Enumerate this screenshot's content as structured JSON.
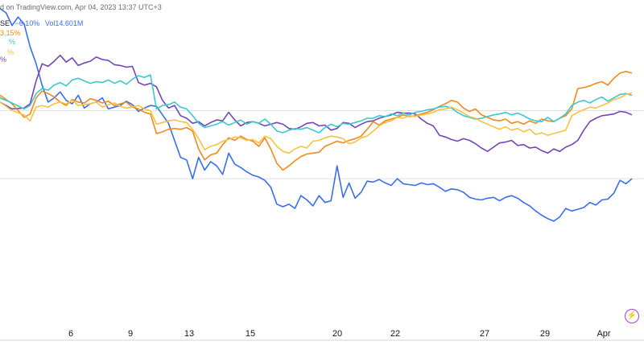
{
  "header": {
    "published_text": "d on TradingView.com, Apr 04, 2023 13:37 UTC+3",
    "symbol_fragment": "SE",
    "change": "−6.10%",
    "volume": "Vol14.601M",
    "orange_label": "3.15%",
    "teal_label": "%",
    "yellow_label": "%",
    "purple_label": "%"
  },
  "colors": {
    "blue": "#3a6ef0",
    "orange": "#f2891c",
    "teal": "#3cc8cc",
    "yellow": "#f6c343",
    "purple": "#7346b8",
    "grid": "#dde1ea",
    "text": "#131722",
    "muted": "#6a6d78"
  },
  "icons": {
    "replay_button": "lightning-icon"
  },
  "chart_data": {
    "type": "line",
    "x_ticks": [
      "6",
      "9",
      "13",
      "15",
      "20",
      "22",
      "27",
      "29",
      "Apr"
    ],
    "x_range": [
      0,
      107
    ],
    "y_range": [
      -27,
      13
    ],
    "reference_lines": [
      0,
      -8
    ],
    "grid": false,
    "series": [
      {
        "color": "blue",
        "x": [
          0,
          1,
          2,
          3,
          4,
          5,
          6,
          7,
          8,
          9,
          10,
          11,
          12,
          13,
          14,
          15,
          16,
          17,
          18,
          19,
          20,
          21,
          22,
          23,
          24,
          25,
          26,
          27,
          28,
          29,
          30,
          31,
          32,
          33,
          34,
          35,
          36,
          37,
          38,
          39,
          40,
          41,
          42,
          43,
          44,
          45,
          46,
          47,
          48,
          49,
          50,
          51,
          52,
          53,
          54,
          55,
          56,
          57,
          58,
          59,
          60,
          61,
          62,
          63,
          64,
          65,
          66,
          67,
          68,
          69,
          70,
          71,
          72,
          73,
          74,
          75,
          76,
          77,
          78,
          79,
          80,
          81,
          82,
          83,
          84,
          85,
          86,
          87,
          88,
          89,
          90,
          91,
          92,
          93,
          94,
          95,
          96,
          97,
          98,
          99,
          100,
          101,
          102,
          103,
          104,
          105
        ],
        "y": [
          12,
          11.5,
          10,
          11,
          10.2,
          7.5,
          5.5,
          3,
          1,
          1.5,
          2.2,
          1.2,
          0.8,
          1.8,
          0.3,
          0.8,
          1,
          1.5,
          0.2,
          0.4,
          0.6,
          1.1,
          0.7,
          -0.1,
          0.3,
          0.6,
          0.5,
          -0.5,
          -1.5,
          -3.5,
          -5.5,
          -5.8,
          -8,
          -5.5,
          -7,
          -6,
          -6.5,
          -7.5,
          -5,
          -6.3,
          -6.7,
          -7.2,
          -7.6,
          -7.8,
          -8.2,
          -9,
          -11,
          -11.3,
          -11,
          -11.5,
          -10,
          -10.5,
          -11.2,
          -10,
          -10.8,
          -10.6,
          -6.5,
          -10.2,
          -8.5,
          -10.3,
          -9.6,
          -8.3,
          -8.4,
          -8.1,
          -8.5,
          -8.8,
          -8,
          -8.6,
          -8.7,
          -8.8,
          -8.5,
          -8.7,
          -8.6,
          -9,
          -9.5,
          -9.2,
          -9.3,
          -9.6,
          -10.2,
          -10.4,
          -10.5,
          -10.3,
          -10.2,
          -10.6,
          -10.2,
          -10,
          -10.3,
          -10.8,
          -11.2,
          -11.8,
          -12.3,
          -12.7,
          -13,
          -12.5,
          -11.5,
          -11.8,
          -11.6,
          -11.4,
          -10.8,
          -11.1,
          -10.5,
          -10.4,
          -9.7,
          -8.2,
          -8.6,
          -8
        ]
      },
      {
        "color": "purple",
        "x": [
          0,
          2,
          4,
          5,
          6,
          7,
          8,
          9,
          10,
          11,
          12,
          13,
          14,
          15,
          16,
          17,
          18,
          19,
          20,
          21,
          22,
          23,
          24,
          25,
          26,
          27,
          28,
          29,
          30,
          31,
          32,
          33,
          34,
          35,
          36,
          37,
          38,
          39,
          40,
          41,
          42,
          43,
          44,
          45,
          46,
          47,
          48,
          49,
          50,
          51,
          52,
          53,
          54,
          55,
          56,
          57,
          58,
          59,
          60,
          61,
          62,
          63,
          64,
          65,
          66,
          67,
          68,
          69,
          70,
          71,
          72,
          73,
          74,
          75,
          76,
          77,
          78,
          79,
          80,
          81,
          82,
          83,
          84,
          85,
          86,
          87,
          88,
          89,
          90,
          91,
          92,
          93,
          94,
          95,
          96,
          97,
          98,
          99,
          100,
          101,
          102,
          103,
          104,
          105
        ],
        "y": [
          1,
          0.2,
          0.3,
          0.8,
          3.5,
          5.5,
          5.2,
          5.8,
          6.5,
          5.7,
          6.2,
          5.3,
          5.6,
          5.8,
          6.3,
          6.0,
          5.9,
          5.4,
          5.3,
          5.1,
          5.2,
          3.3,
          3.0,
          3.2,
          2.8,
          1.2,
          0.3,
          0.6,
          -0.6,
          -0.9,
          -1.5,
          -1.3,
          -1.8,
          -1.4,
          -1.1,
          -1.2,
          -0.2,
          -1.1,
          -1.8,
          -1.4,
          -1.3,
          -1.5,
          -1.8,
          -1.6,
          -1.4,
          -1.6,
          -2.1,
          -2.2,
          -1.9,
          -1.5,
          -1.4,
          -1.8,
          -1.7,
          -2.3,
          -2.1,
          -1.4,
          -1.5,
          -2.0,
          -1.6,
          -1.3,
          -1.2,
          -0.9,
          -0.7,
          -0.5,
          -0.2,
          -0.3,
          -0.3,
          -0.4,
          -1.0,
          -1.5,
          -1.8,
          -2.9,
          -3.1,
          -3.4,
          -3.6,
          -3.3,
          -3.5,
          -3.9,
          -4.4,
          -4.8,
          -4.3,
          -3.8,
          -3.7,
          -3.5,
          -4.1,
          -4.0,
          -4.4,
          -4.3,
          -4.7,
          -5.0,
          -4.5,
          -4.8,
          -4.3,
          -4.0,
          -3.5,
          -2.3,
          -1.3,
          -0.9,
          -0.6,
          -0.5,
          -0.4,
          -0.1,
          -0.2,
          -0.5
        ]
      },
      {
        "color": "orange",
        "x": [
          0,
          2,
          4,
          5,
          6,
          7,
          8,
          9,
          10,
          11,
          12,
          13,
          14,
          15,
          16,
          17,
          18,
          19,
          20,
          21,
          22,
          23,
          24,
          25,
          26,
          27,
          28,
          29,
          30,
          31,
          32,
          33,
          34,
          35,
          36,
          37,
          38,
          39,
          40,
          41,
          42,
          43,
          44,
          45,
          46,
          47,
          48,
          49,
          50,
          51,
          52,
          53,
          54,
          55,
          56,
          57,
          58,
          59,
          60,
          61,
          62,
          63,
          64,
          65,
          66,
          67,
          68,
          69,
          70,
          71,
          72,
          73,
          74,
          75,
          76,
          77,
          78,
          79,
          80,
          81,
          82,
          83,
          84,
          85,
          86,
          87,
          88,
          89,
          90,
          91,
          92,
          93,
          94,
          95,
          96,
          97,
          98,
          99,
          100,
          101,
          102,
          103,
          104,
          105
        ],
        "y": [
          1.8,
          0.8,
          -0.8,
          -0.4,
          1.5,
          2.3,
          2.0,
          1.6,
          1.0,
          0.6,
          1.3,
          1.0,
          0.9,
          1.4,
          1.2,
          0.9,
          1.1,
          0.6,
          0.8,
          1.0,
          0.4,
          0.2,
          -0.2,
          -0.4,
          -2.7,
          -2.5,
          -2.2,
          -2.1,
          -2.2,
          -2.0,
          -2.4,
          -4.5,
          -5.8,
          -5.2,
          -5.0,
          -4.0,
          -3.2,
          -3.5,
          -3.0,
          -3.4,
          -3.6,
          -4.2,
          -3.2,
          -4.5,
          -6.2,
          -7.0,
          -6.5,
          -5.9,
          -5.4,
          -5.1,
          -5.0,
          -4.9,
          -4.2,
          -3.9,
          -3.6,
          -3.8,
          -3.5,
          -3.3,
          -3.0,
          -2.2,
          -1.3,
          -1.7,
          -1.2,
          -1.0,
          -0.8,
          -0.5,
          -0.7,
          -0.6,
          -0.4,
          -0.2,
          0.1,
          0.5,
          0.8,
          1.2,
          1.0,
          0.3,
          -0.1,
          0.2,
          -0.5,
          -0.8,
          -1.1,
          -1.2,
          -1.0,
          -1.5,
          -1.3,
          -1.6,
          -1.2,
          -1.5,
          -1.0,
          -1.2,
          -1.3,
          -0.9,
          -0.6,
          0.2,
          2.6,
          2.7,
          2.9,
          3.2,
          3.4,
          3.0,
          3.8,
          4.4,
          4.6,
          4.4
        ]
      },
      {
        "color": "teal",
        "x": [
          0,
          2,
          4,
          5,
          6,
          7,
          8,
          9,
          10,
          11,
          12,
          13,
          14,
          15,
          16,
          17,
          18,
          19,
          20,
          21,
          22,
          23,
          24,
          25,
          26,
          27,
          28,
          29,
          30,
          31,
          32,
          33,
          34,
          35,
          36,
          37,
          38,
          39,
          40,
          41,
          42,
          43,
          44,
          45,
          46,
          47,
          48,
          49,
          50,
          51,
          52,
          53,
          54,
          55,
          56,
          57,
          58,
          59,
          60,
          61,
          62,
          63,
          64,
          65,
          66,
          67,
          68,
          69,
          70,
          71,
          72,
          73,
          74,
          75,
          76,
          77,
          78,
          79,
          80,
          81,
          82,
          83,
          84,
          85,
          86,
          87,
          88,
          89,
          90,
          91,
          92,
          93,
          94,
          95,
          96,
          97,
          98,
          99,
          100,
          101,
          102,
          103,
          104,
          105
        ],
        "y": [
          1.5,
          0.9,
          0.2,
          0.6,
          2.0,
          2.6,
          2.4,
          3.0,
          3.3,
          2.9,
          3.6,
          3.8,
          3.5,
          3.2,
          3.4,
          3.3,
          3.6,
          3.2,
          3.5,
          3.1,
          3.7,
          4.1,
          3.9,
          4.2,
          0.2,
          0.6,
          0.7,
          1.0,
          0.4,
          0.2,
          -0.6,
          -1.5,
          -2.0,
          -1.8,
          -1.6,
          -1.3,
          -1.7,
          -1.4,
          -1.1,
          -1.6,
          -1.3,
          -1.5,
          -1.0,
          -1.6,
          -2.4,
          -2.6,
          -2.3,
          -2.1,
          -2.2,
          -2.0,
          -2.3,
          -2.6,
          -2.0,
          -1.6,
          -1.9,
          -1.5,
          -1.6,
          -1.4,
          -1.2,
          -0.9,
          -0.9,
          -0.6,
          -0.7,
          -0.4,
          -0.6,
          -0.3,
          -0.5,
          -0.2,
          -0.1,
          0.1,
          0.2,
          0.4,
          0.5,
          0.3,
          -0.2,
          -0.6,
          -0.8,
          -1.0,
          -0.9,
          -0.7,
          -0.5,
          -0.4,
          -0.2,
          -0.5,
          -0.3,
          -0.6,
          -1.0,
          -1.2,
          -1.3,
          -0.8,
          -1.3,
          -0.9,
          -0.4,
          0.6,
          1.0,
          1.2,
          0.9,
          1.3,
          1.6,
          1.1,
          1.5,
          1.9,
          2.0,
          1.8
        ]
      },
      {
        "color": "yellow",
        "x": [
          0,
          2,
          4,
          5,
          6,
          7,
          8,
          9,
          10,
          11,
          12,
          13,
          14,
          15,
          16,
          17,
          18,
          19,
          20,
          21,
          22,
          23,
          24,
          25,
          26,
          27,
          28,
          29,
          30,
          31,
          32,
          33,
          34,
          35,
          36,
          37,
          38,
          39,
          40,
          41,
          42,
          43,
          44,
          45,
          46,
          47,
          48,
          49,
          50,
          51,
          52,
          53,
          54,
          55,
          56,
          57,
          58,
          59,
          60,
          61,
          62,
          63,
          64,
          65,
          66,
          67,
          68,
          69,
          70,
          71,
          72,
          73,
          74,
          75,
          76,
          77,
          78,
          79,
          80,
          81,
          82,
          83,
          84,
          85,
          86,
          87,
          88,
          89,
          90,
          91,
          92,
          93,
          94,
          95,
          96,
          97,
          98,
          99,
          100,
          101,
          102,
          103,
          104,
          105
        ],
        "y": [
          1.0,
          0.0,
          -0.5,
          -1.2,
          0.4,
          0.6,
          0.4,
          0.8,
          1.0,
          0.8,
          1.2,
          0.6,
          0.7,
          0.8,
          1.0,
          0.4,
          0.7,
          0.9,
          0.5,
          0.3,
          0.4,
          0.6,
          0.2,
          0.0,
          -1.6,
          -1.4,
          -1.2,
          -1.1,
          -1.3,
          -1.4,
          -2.2,
          -3.3,
          -4.6,
          -4.2,
          -4.0,
          -3.6,
          -3.4,
          -3.1,
          -3.2,
          -3.5,
          -3.4,
          -3.8,
          -3.0,
          -3.3,
          -4.2,
          -4.8,
          -5.0,
          -4.5,
          -4.2,
          -4.4,
          -3.6,
          -3.5,
          -3.2,
          -3.0,
          -3.1,
          -3.3,
          -3.9,
          -3.7,
          -3.2,
          -3.0,
          -2.4,
          -1.8,
          -1.4,
          -1.2,
          -0.8,
          -0.9,
          -0.6,
          -0.7,
          -0.5,
          -0.4,
          -0.2,
          0.1,
          0.2,
          0.4,
          0.1,
          -0.3,
          -0.7,
          -0.9,
          -1.3,
          -1.6,
          -1.9,
          -2.2,
          -1.9,
          -2.3,
          -2.1,
          -2.5,
          -2.2,
          -2.8,
          -2.6,
          -2.9,
          -2.7,
          -2.5,
          -2.3,
          -0.6,
          -0.2,
          0.1,
          0.4,
          0.3,
          0.6,
          0.9,
          1.3,
          1.5,
          1.9,
          2.1
        ]
      }
    ]
  }
}
